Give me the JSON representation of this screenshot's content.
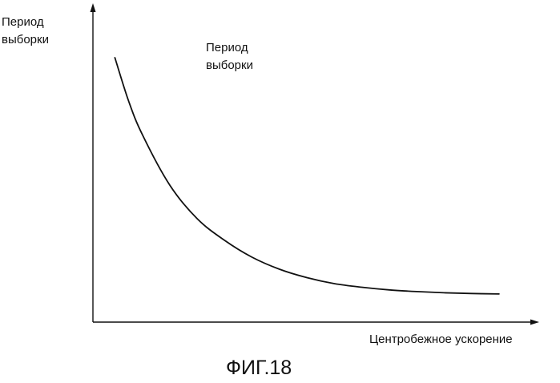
{
  "figure": {
    "caption": "ФИГ.18"
  },
  "chart_data": {
    "type": "line",
    "title": "",
    "ylabel_lines": [
      "Период",
      "выборки"
    ],
    "xlabel": "Центробежное ускорение",
    "series": [
      {
        "name_lines": [
          "Период",
          "выборки"
        ],
        "x": [
          0.0,
          0.25,
          0.5,
          1.0,
          1.5,
          2.0,
          2.5,
          3.0,
          3.5,
          4.0,
          4.5,
          5.0,
          5.5,
          6.0,
          6.5,
          7.0
        ],
        "y": [
          1.0,
          0.82,
          0.68,
          0.47,
          0.33,
          0.24,
          0.17,
          0.12,
          0.085,
          0.06,
          0.045,
          0.034,
          0.027,
          0.022,
          0.019,
          0.017
        ]
      }
    ],
    "xlim": [
      -0.4,
      7.6
    ],
    "ylim": [
      -0.1,
      1.2
    ],
    "grid": false,
    "axis_ticks": false
  }
}
